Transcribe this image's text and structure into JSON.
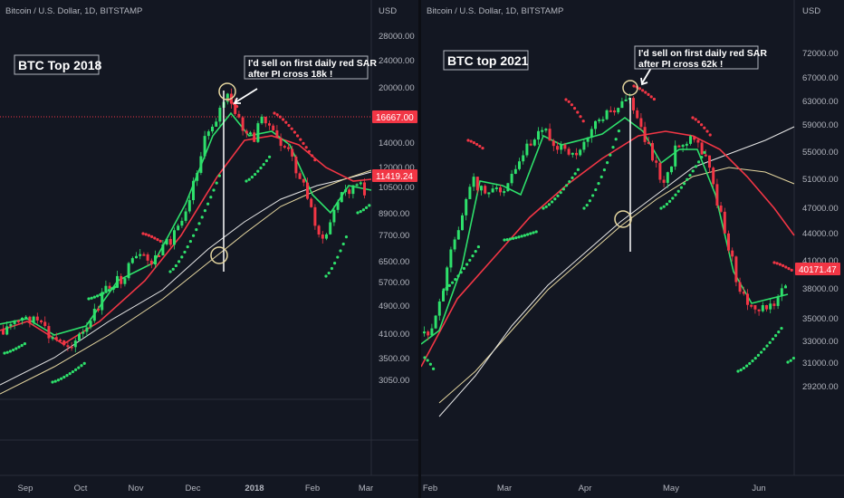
{
  "charts": [
    {
      "id": "left",
      "header": "Bitcoin / U.S. Dollar, 1D, BITSTAMP",
      "currency": "USD",
      "title": "BTC Top 2018",
      "note_line1": "I'd sell on first daily red SAR",
      "note_line2": "after PI cross 18k !",
      "price_axis": [
        "28000.00",
        "24000.00",
        "20000.00",
        "14000.00",
        "12000.00",
        "10500.00",
        "8900.00",
        "7700.00",
        "6500.00",
        "5700.00",
        "4900.00",
        "4100.00",
        "3500.00",
        "3050.00"
      ],
      "time_axis": [
        "Sep",
        "Oct",
        "Nov",
        "Dec",
        "2018",
        "Feb",
        "Mar"
      ],
      "price_tags": [
        {
          "label": "16667.00",
          "color": "#f23645"
        },
        {
          "label": "11419.24",
          "color": "#f23645"
        }
      ],
      "colors": {
        "up": "#26a69a",
        "candle_up": "#2ee06b",
        "candle_down": "#f23645",
        "ma_fast": "#2ee06b",
        "ma_mid": "#f23645",
        "ma_slow": "#e8e8e8",
        "ma_350": "#e6d7a0",
        "sar_up": "#2ee06b",
        "sar_down": "#f23645"
      }
    },
    {
      "id": "right",
      "header": "Bitcoin / U.S. Dollar, 1D, BITSTAMP",
      "currency": "USD",
      "title": "BTC top 2021",
      "note_line1": "I'd sell on first daily red SAR",
      "note_line2": "after PI cross 62k !",
      "price_axis": [
        "72000.00",
        "67000.00",
        "63000.00",
        "59000.00",
        "55000.00",
        "51000.00",
        "47000.00",
        "44000.00",
        "41000.00",
        "38000.00",
        "35000.00",
        "33000.00",
        "31000.00",
        "29200.00"
      ],
      "time_axis": [
        "Feb",
        "Mar",
        "Apr",
        "May",
        "Jun"
      ],
      "price_tags": [
        {
          "label": "40171.47",
          "color": "#f23645"
        }
      ],
      "colors": {
        "candle_up": "#2ee06b",
        "candle_down": "#f23645",
        "ma_fast": "#2ee06b",
        "ma_mid": "#f23645",
        "ma_slow": "#e8e8e8",
        "ma_350": "#e6d7a0",
        "sar_up": "#2ee06b",
        "sar_down": "#f23645"
      }
    }
  ]
}
